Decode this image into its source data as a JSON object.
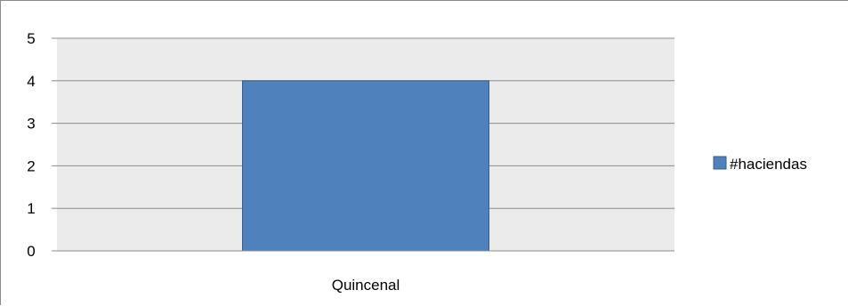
{
  "chart_data": {
    "type": "bar",
    "title": "",
    "xlabel": "",
    "ylabel": "",
    "categories": [
      "Quincenal"
    ],
    "series": [
      {
        "name": "#haciendas",
        "values": [
          4
        ],
        "color": "#4f81bd"
      }
    ],
    "ylim": [
      0,
      5
    ],
    "yticks": [
      "0",
      "1",
      "2",
      "3",
      "4",
      "5"
    ],
    "grid": true,
    "legend": {
      "position": "right",
      "entries": [
        "#haciendas"
      ]
    },
    "plot_background": "#ebebeb"
  }
}
